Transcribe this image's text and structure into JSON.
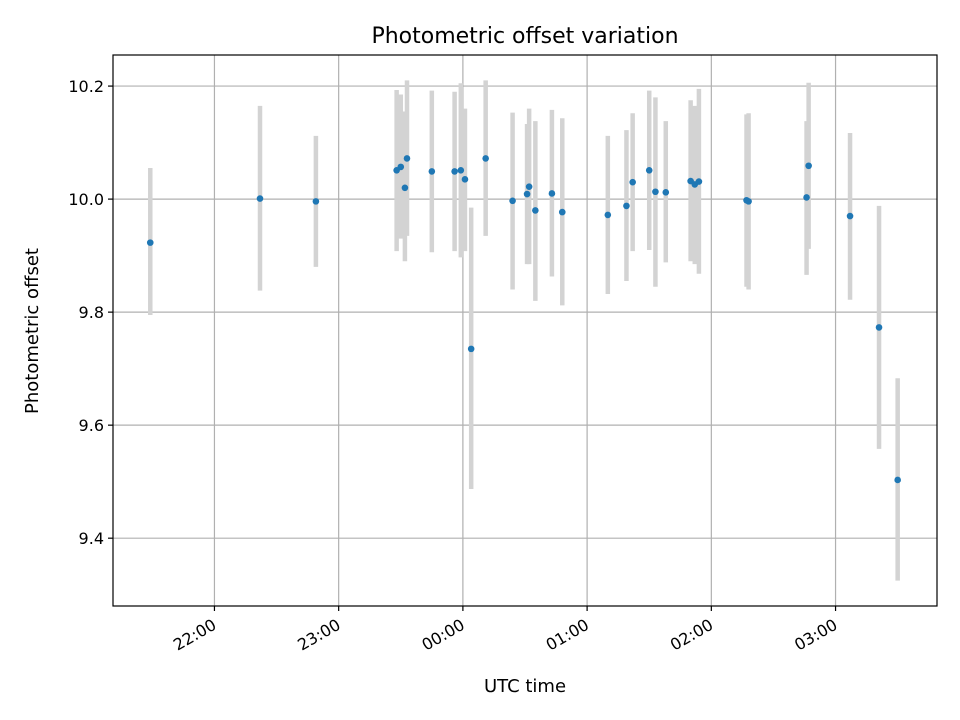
{
  "chart_data": {
    "type": "scatter",
    "title": "Photometric offset variation",
    "xlabel": "UTC time",
    "ylabel": "Photometric offset",
    "grid": true,
    "x_unit": "UTC hours (values past 24:00 fall after midnight)",
    "xlim": [
      "21:11",
      "03:49"
    ],
    "ylim": [
      9.28,
      10.255
    ],
    "x_ticks": [
      {
        "value": "22:00",
        "label": "22:00"
      },
      {
        "value": "23:00",
        "label": "23:00"
      },
      {
        "value": "00:00",
        "label": "00:00"
      },
      {
        "value": "01:00",
        "label": "01:00"
      },
      {
        "value": "02:00",
        "label": "02:00"
      },
      {
        "value": "03:00",
        "label": "03:00"
      }
    ],
    "y_ticks": [
      9.4,
      9.6,
      9.8,
      10.0,
      10.2
    ],
    "colors": {
      "point": "#1f77b4",
      "errorbar": "#d3d3d3",
      "grid": "#b0b0b0"
    },
    "points": [
      {
        "t": "21:29",
        "y": 9.923,
        "lo": 9.795,
        "hi": 10.055
      },
      {
        "t": "22:22",
        "y": 10.001,
        "lo": 9.838,
        "hi": 10.165
      },
      {
        "t": "22:49",
        "y": 9.996,
        "lo": 9.88,
        "hi": 10.112
      },
      {
        "t": "23:28",
        "y": 10.051,
        "lo": 9.908,
        "hi": 10.193
      },
      {
        "t": "23:30",
        "y": 10.057,
        "lo": 9.93,
        "hi": 10.185
      },
      {
        "t": "23:32",
        "y": 10.02,
        "lo": 9.89,
        "hi": 10.155
      },
      {
        "t": "23:33",
        "y": 10.072,
        "lo": 9.935,
        "hi": 10.21
      },
      {
        "t": "23:45",
        "y": 10.049,
        "lo": 9.906,
        "hi": 10.192
      },
      {
        "t": "23:56",
        "y": 10.049,
        "lo": 9.908,
        "hi": 10.19
      },
      {
        "t": "23:59",
        "y": 10.051,
        "lo": 9.897,
        "hi": 10.205
      },
      {
        "t": "00:01",
        "y": 10.035,
        "lo": 9.908,
        "hi": 10.16
      },
      {
        "t": "00:04",
        "y": 9.735,
        "lo": 9.487,
        "hi": 9.985
      },
      {
        "t": "00:11",
        "y": 10.072,
        "lo": 9.935,
        "hi": 10.21
      },
      {
        "t": "00:24",
        "y": 9.997,
        "lo": 9.84,
        "hi": 10.153
      },
      {
        "t": "00:31",
        "y": 10.009,
        "lo": 9.885,
        "hi": 10.133
      },
      {
        "t": "00:32",
        "y": 10.022,
        "lo": 9.885,
        "hi": 10.16
      },
      {
        "t": "00:35",
        "y": 9.98,
        "lo": 9.82,
        "hi": 10.138
      },
      {
        "t": "00:43",
        "y": 10.01,
        "lo": 9.863,
        "hi": 10.158
      },
      {
        "t": "00:48",
        "y": 9.977,
        "lo": 9.812,
        "hi": 10.143
      },
      {
        "t": "01:10",
        "y": 9.972,
        "lo": 9.832,
        "hi": 10.112
      },
      {
        "t": "01:19",
        "y": 9.988,
        "lo": 9.855,
        "hi": 10.122
      },
      {
        "t": "01:22",
        "y": 10.03,
        "lo": 9.908,
        "hi": 10.152
      },
      {
        "t": "01:30",
        "y": 10.051,
        "lo": 9.91,
        "hi": 10.192
      },
      {
        "t": "01:33",
        "y": 10.013,
        "lo": 9.845,
        "hi": 10.18
      },
      {
        "t": "01:38",
        "y": 10.012,
        "lo": 9.888,
        "hi": 10.138
      },
      {
        "t": "01:50",
        "y": 10.032,
        "lo": 9.89,
        "hi": 10.175
      },
      {
        "t": "01:52",
        "y": 10.026,
        "lo": 9.885,
        "hi": 10.165
      },
      {
        "t": "01:54",
        "y": 10.031,
        "lo": 9.868,
        "hi": 10.195
      },
      {
        "t": "02:17",
        "y": 9.998,
        "lo": 9.845,
        "hi": 10.15
      },
      {
        "t": "02:18",
        "y": 9.996,
        "lo": 9.84,
        "hi": 10.152
      },
      {
        "t": "02:46",
        "y": 10.003,
        "lo": 9.866,
        "hi": 10.138
      },
      {
        "t": "02:47",
        "y": 10.059,
        "lo": 9.912,
        "hi": 10.206
      },
      {
        "t": "03:07",
        "y": 9.97,
        "lo": 9.822,
        "hi": 10.117
      },
      {
        "t": "03:21",
        "y": 9.773,
        "lo": 9.558,
        "hi": 9.988
      },
      {
        "t": "03:30",
        "y": 9.503,
        "lo": 9.325,
        "hi": 9.683
      }
    ]
  }
}
